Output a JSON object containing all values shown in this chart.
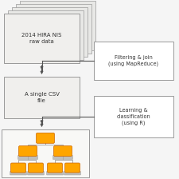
{
  "bg_color": "#f5f5f5",
  "box1_text": "2014 HIRA NIS\nraw data",
  "box2_text": "A single CSV\nfile",
  "box3_text": "Filtering & join\n(using MapReduce)",
  "box4_text": "Learning &\nclassification\n(using R)",
  "box_face": "#f0efed",
  "box_edge": "#999999",
  "text_color": "#333333",
  "arrow_color": "#555555",
  "font_size": 5.0,
  "node_color": "#FFA500",
  "node_edge": "#cc6600",
  "stem_color": "#aaaaaa",
  "base_color": "#c0bfbb"
}
